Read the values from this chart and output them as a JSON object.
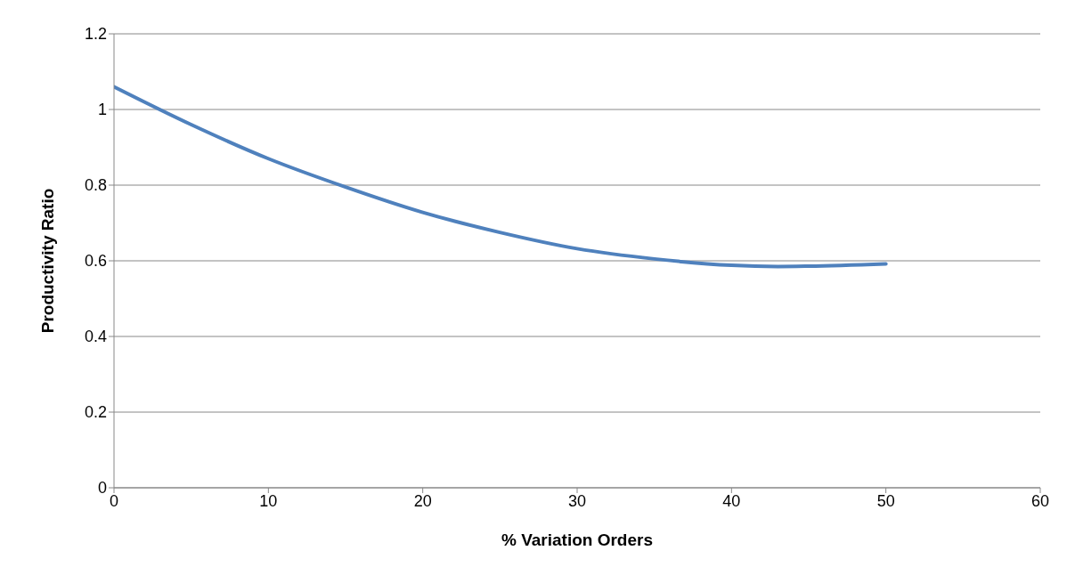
{
  "chart_data": {
    "type": "line",
    "xlabel": "% Variation Orders",
    "ylabel": "Productivity Ratio",
    "x": [
      0,
      5,
      10,
      15,
      20,
      25,
      30,
      35,
      40,
      43,
      45,
      50
    ],
    "series": [
      {
        "color": "#4f81bd",
        "values": [
          1.06,
          0.96,
          0.87,
          0.795,
          0.728,
          0.675,
          0.632,
          0.605,
          0.588,
          0.585,
          0.586,
          0.592
        ]
      }
    ],
    "xlim": [
      0,
      60
    ],
    "xticks": [
      0,
      10,
      20,
      30,
      40,
      50,
      60
    ],
    "ylim": [
      0,
      1.2
    ],
    "yticks": [
      0,
      0.2,
      0.4,
      0.6,
      0.8,
      1,
      1.2
    ],
    "grid": "y",
    "marker": "none",
    "line_style": "solid",
    "legend": false
  }
}
